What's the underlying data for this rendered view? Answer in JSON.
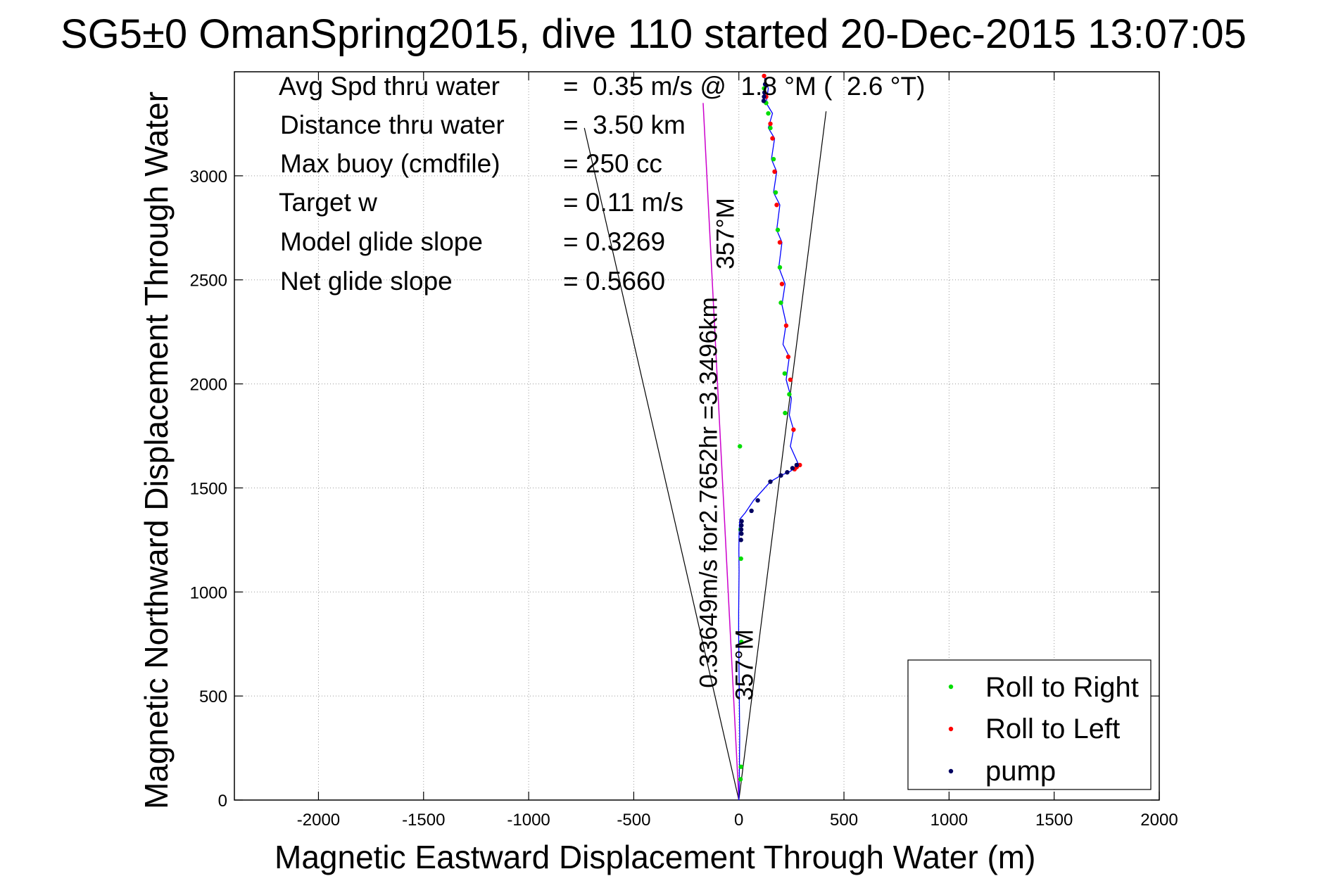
{
  "chart_data": {
    "type": "scatter",
    "title": "SG5±0 OmanSpring2015, dive 110 started 20-Dec-2015 13:07:05",
    "xlabel": "Magnetic Eastward Displacement Through Water (m)",
    "ylabel": "Magnetic Northward Displacement Through Water",
    "xlim": [
      -2400,
      2000
    ],
    "ylim": [
      0,
      3500
    ],
    "grid": true,
    "x_ticks": [
      -2000,
      -1500,
      -1000,
      -500,
      0,
      500,
      1000,
      1500,
      2000
    ],
    "x_tick_labels": [
      "-2000",
      "-1500",
      "-1000",
      "-500",
      "0",
      "500",
      "1000",
      "1500",
      "2000"
    ],
    "y_ticks": [
      0,
      500,
      1000,
      1500,
      2000,
      2500,
      3000
    ],
    "y_tick_labels": [
      "0",
      "500",
      "1000",
      "1500",
      "2000",
      "2500",
      "3000"
    ],
    "stats": [
      {
        "label": "Avg Spd thru water",
        "value": "=  0.35 m/s @  1.8 °M (  2.6 °T)"
      },
      {
        "label": "Distance thru water",
        "value": "=  3.50 km"
      },
      {
        "label": "Max buoy (cmdfile)",
        "value": "= 250 cc"
      },
      {
        "label": "Target w",
        "value": "= 0.11 m/s"
      },
      {
        "label": "Model glide slope",
        "value": "= 0.3269"
      },
      {
        "label": "Net glide slope",
        "value": "= 0.5660"
      }
    ],
    "annotations": {
      "heading_top": "357°M",
      "heading_bottom": "357°M",
      "speed_note": "0.33649m/s for2.7652hr =3.3496km"
    },
    "legend": {
      "placement": "bottom-right",
      "entries": [
        {
          "name": "Roll to Right",
          "color": "#00dd00"
        },
        {
          "name": "Roll to Left",
          "color": "#ff0000"
        },
        {
          "name": "pump",
          "color": "#000060"
        }
      ]
    },
    "track": {
      "name": "glider track",
      "color": "#0000ff",
      "x": [
        0,
        2,
        3,
        4,
        3,
        2,
        1,
        0,
        -1,
        -1,
        0,
        1,
        0,
        1,
        3,
        5,
        30,
        70,
        150,
        200,
        245,
        270,
        285,
        245,
        260,
        240,
        250,
        225,
        240,
        210,
        225,
        205,
        220,
        190,
        205,
        180,
        195,
        165,
        180,
        155,
        170,
        140,
        160,
        130,
        140,
        118
      ],
      "y": [
        0,
        100,
        200,
        300,
        400,
        500,
        600,
        700,
        800,
        900,
        1000,
        1100,
        1200,
        1280,
        1330,
        1350,
        1380,
        1440,
        1530,
        1560,
        1580,
        1600,
        1610,
        1700,
        1780,
        1850,
        1930,
        2020,
        2130,
        2190,
        2290,
        2380,
        2480,
        2560,
        2680,
        2740,
        2860,
        2920,
        3020,
        3080,
        3180,
        3230,
        3300,
        3350,
        3420,
        3480
      ]
    },
    "points": [
      {
        "series": "Roll to Right",
        "x": [
          8,
          10,
          12,
          10,
          8,
          5,
          220,
          240,
          218,
          200,
          195,
          185,
          175,
          165,
          150,
          140,
          130,
          120
        ],
        "y": [
          100,
          160,
          760,
          1160,
          1300,
          1700,
          1860,
          1950,
          2050,
          2390,
          2560,
          2740,
          2920,
          3080,
          3230,
          3300,
          3350,
          3420
        ]
      },
      {
        "series": "Roll to Left",
        "x": [
          260,
          290,
          275,
          265,
          245,
          235,
          225,
          205,
          195,
          180,
          170,
          160,
          150,
          130,
          120
        ],
        "y": [
          1780,
          1610,
          1600,
          1590,
          2020,
          2130,
          2280,
          2480,
          2680,
          2860,
          3020,
          3180,
          3250,
          3380,
          3480
        ]
      },
      {
        "series": "pump",
        "x": [
          10,
          12,
          11,
          12,
          13,
          60,
          90,
          150,
          200,
          230,
          255,
          275,
          118,
          120,
          122,
          125
        ],
        "y": [
          1250,
          1280,
          1300,
          1320,
          1340,
          1390,
          1440,
          1530,
          1560,
          1575,
          1595,
          1610,
          3360,
          3380,
          3400,
          3440
        ]
      }
    ],
    "reference_lines": {
      "spread_left_end": [
        -735,
        3230
      ],
      "spread_right_end": [
        415,
        3310
      ],
      "magenta_heading_end": [
        -170,
        3350
      ]
    }
  }
}
